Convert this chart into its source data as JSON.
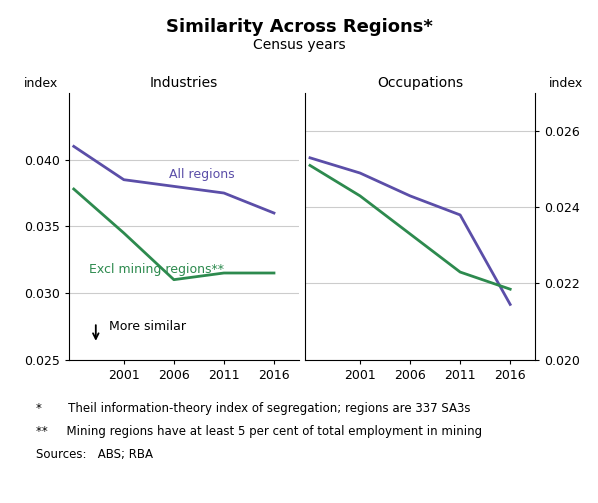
{
  "title": "Similarity Across Regions*",
  "subtitle": "Census years",
  "left_panel_title": "Industries",
  "right_panel_title": "Occupations",
  "left_ylabel": "index",
  "right_ylabel": "index",
  "x_years": [
    1996,
    2001,
    2006,
    2011,
    2016
  ],
  "x_tick_years": [
    2001,
    2006,
    2011,
    2016
  ],
  "left_ylim": [
    0.025,
    0.045
  ],
  "left_yticks": [
    0.025,
    0.03,
    0.035,
    0.04
  ],
  "right_ylim": [
    0.02,
    0.027
  ],
  "right_yticks": [
    0.02,
    0.022,
    0.024,
    0.026
  ],
  "industries_all": [
    0.041,
    0.0385,
    0.038,
    0.0375,
    0.036
  ],
  "industries_excl": [
    0.0378,
    0.0345,
    0.031,
    0.0315,
    0.0315
  ],
  "occupations_all": [
    0.0253,
    0.0249,
    0.0243,
    0.0238,
    0.02145
  ],
  "occupations_excl": [
    0.0251,
    0.0243,
    0.0233,
    0.0223,
    0.02185
  ],
  "color_purple": "#5B4EA8",
  "color_green": "#2D8A4E",
  "line_width": 2.0,
  "annotation_text": "More similar",
  "footnote1": "*       Theil information-theory index of segregation; regions are 337 SA3s",
  "footnote2": "**     Mining regions have at least 5 per cent of total employment in mining",
  "footnote3": "Sources:   ABS; RBA",
  "label_all_regions": "All regions",
  "label_excl": "Excl mining regions**"
}
